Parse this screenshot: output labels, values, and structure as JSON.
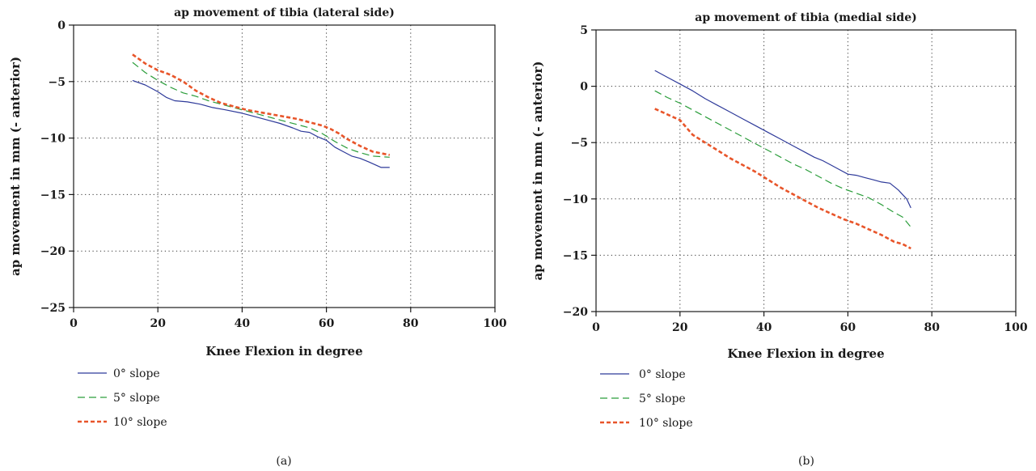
{
  "chart_data": [
    {
      "type": "line",
      "panel_label": "(a)",
      "title": "ap movement of tibia (lateral side)",
      "xlabel": "Knee Flexion in degree",
      "ylabel": "ap movement in mm (- anterior)",
      "xlim": [
        0,
        100
      ],
      "ylim": [
        -25,
        0
      ],
      "xticks": [
        0,
        20,
        40,
        60,
        80,
        100
      ],
      "xtick_labels": [
        "0",
        "20",
        "40",
        "60",
        "80",
        "100"
      ],
      "yticks": [
        0,
        -5,
        -10,
        -15,
        -20,
        -25
      ],
      "ytick_labels": [
        "0",
        "−5",
        "−10",
        "−15",
        "−20",
        "−25"
      ],
      "grid": "dotted",
      "legend_position": "below-left",
      "series": [
        {
          "name": "0° slope",
          "color": "#2e3a9a",
          "dash": "solid",
          "x": [
            14,
            17,
            20,
            22,
            24,
            27,
            30,
            33,
            36,
            40,
            43,
            46,
            49,
            52,
            54,
            56,
            58,
            60,
            62,
            64,
            66,
            68,
            70,
            73,
            75
          ],
          "y": [
            -4.9,
            -5.3,
            -5.9,
            -6.4,
            -6.7,
            -6.8,
            -7.0,
            -7.3,
            -7.5,
            -7.8,
            -8.1,
            -8.4,
            -8.7,
            -9.1,
            -9.4,
            -9.5,
            -9.9,
            -10.2,
            -10.8,
            -11.2,
            -11.6,
            -11.8,
            -12.1,
            -12.6,
            -12.6
          ]
        },
        {
          "name": "5° slope",
          "color": "#2a9d3a",
          "dash": "long-dash",
          "x": [
            14,
            17,
            20,
            23,
            26,
            29,
            32,
            35,
            38,
            41,
            44,
            47,
            50,
            53,
            56,
            59,
            62,
            65,
            68,
            71,
            75
          ],
          "y": [
            -3.3,
            -4.2,
            -4.9,
            -5.5,
            -6.0,
            -6.3,
            -6.7,
            -7.0,
            -7.3,
            -7.6,
            -7.9,
            -8.2,
            -8.5,
            -8.8,
            -9.1,
            -9.6,
            -10.3,
            -10.9,
            -11.3,
            -11.6,
            -11.7
          ]
        },
        {
          "name": "10° slope",
          "color": "#e8552a",
          "dash": "short-dash",
          "x": [
            14,
            17,
            20,
            23,
            26,
            29,
            32,
            35,
            38,
            41,
            44,
            47,
            50,
            53,
            56,
            59,
            61,
            63,
            65,
            68,
            71,
            75
          ],
          "y": [
            -2.6,
            -3.4,
            -4.0,
            -4.4,
            -5.0,
            -5.8,
            -6.4,
            -6.9,
            -7.2,
            -7.5,
            -7.7,
            -7.9,
            -8.1,
            -8.3,
            -8.6,
            -8.9,
            -9.2,
            -9.6,
            -10.1,
            -10.7,
            -11.2,
            -11.5
          ]
        }
      ]
    },
    {
      "type": "line",
      "panel_label": "(b)",
      "title": "ap movement of tibia (medial side)",
      "xlabel": "Knee Flexion in degree",
      "ylabel": "ap movement in mm (- anterior)",
      "xlim": [
        0,
        100
      ],
      "ylim": [
        -20,
        5
      ],
      "xticks": [
        0,
        20,
        40,
        60,
        80,
        100
      ],
      "xtick_labels": [
        "0",
        "20",
        "40",
        "60",
        "80",
        "100"
      ],
      "yticks": [
        5,
        0,
        -5,
        -10,
        -15,
        -20
      ],
      "ytick_labels": [
        "5",
        "0",
        "−5",
        "−10",
        "−15",
        "−20"
      ],
      "grid": "dotted",
      "legend_position": "below-left",
      "series": [
        {
          "name": "0° slope",
          "color": "#2e3a9a",
          "dash": "solid",
          "x": [
            14,
            17,
            20,
            23,
            26,
            29,
            32,
            35,
            38,
            41,
            44,
            47,
            50,
            52,
            54,
            56,
            58,
            60,
            62,
            64,
            66,
            68,
            70,
            72,
            74,
            75
          ],
          "y": [
            1.4,
            0.8,
            0.2,
            -0.4,
            -1.1,
            -1.7,
            -2.3,
            -2.9,
            -3.5,
            -4.1,
            -4.7,
            -5.3,
            -5.9,
            -6.3,
            -6.6,
            -7.0,
            -7.4,
            -7.8,
            -7.9,
            -8.1,
            -8.3,
            -8.5,
            -8.6,
            -9.2,
            -10.0,
            -10.8
          ]
        },
        {
          "name": "5° slope",
          "color": "#2a9d3a",
          "dash": "long-dash",
          "x": [
            14,
            17,
            20,
            23,
            26,
            29,
            32,
            35,
            38,
            41,
            44,
            47,
            50,
            53,
            56,
            59,
            62,
            65,
            68,
            71,
            73,
            75
          ],
          "y": [
            -0.4,
            -1.0,
            -1.5,
            -2.1,
            -2.7,
            -3.3,
            -3.9,
            -4.5,
            -5.1,
            -5.7,
            -6.3,
            -6.9,
            -7.4,
            -8.0,
            -8.6,
            -9.1,
            -9.5,
            -9.9,
            -10.5,
            -11.2,
            -11.6,
            -12.5
          ]
        },
        {
          "name": "10° slope",
          "color": "#e8552a",
          "dash": "short-dash",
          "x": [
            14,
            17,
            20,
            23,
            26,
            29,
            32,
            35,
            38,
            41,
            44,
            47,
            50,
            53,
            56,
            59,
            62,
            65,
            68,
            71,
            73,
            75
          ],
          "y": [
            -2.0,
            -2.5,
            -3.0,
            -4.3,
            -5.0,
            -5.7,
            -6.4,
            -7.0,
            -7.6,
            -8.3,
            -9.0,
            -9.6,
            -10.2,
            -10.8,
            -11.3,
            -11.8,
            -12.2,
            -12.7,
            -13.2,
            -13.8,
            -14.0,
            -14.4
          ]
        }
      ]
    }
  ]
}
